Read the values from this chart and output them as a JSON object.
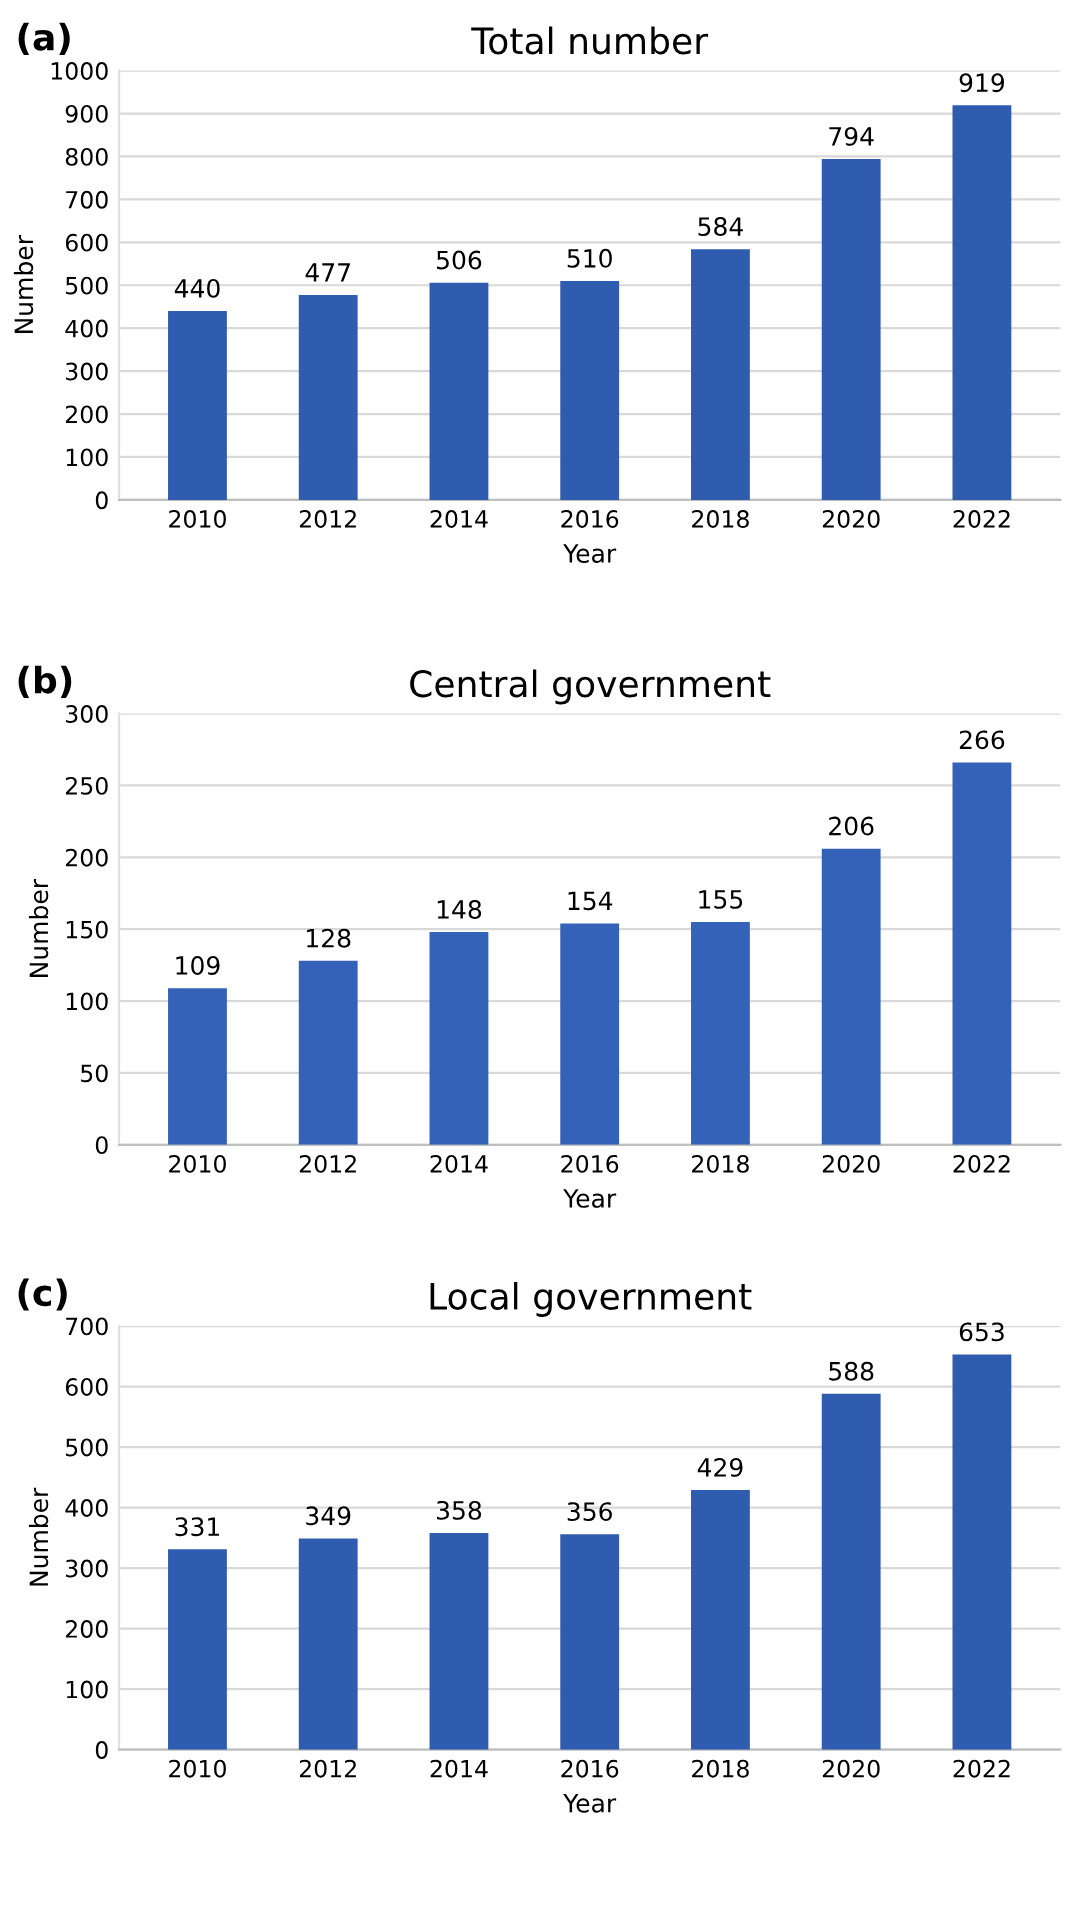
{
  "chart_data": [
    {
      "type": "bar",
      "title": "Total number",
      "xlabel": "Year",
      "ylabel": "Number",
      "annotations": [
        "(a)"
      ],
      "categories": [
        "2010",
        "2012",
        "2014",
        "2016",
        "2018",
        "2020",
        "2022"
      ],
      "values": [
        440,
        477,
        506,
        510,
        584,
        794,
        919
      ],
      "color": "#2f5cae",
      "ylim": [
        0,
        1000
      ],
      "yticks": [
        0,
        100,
        200,
        300,
        400,
        500,
        600,
        700,
        800,
        900,
        1000
      ],
      "grid": "y",
      "data_labels": true
    },
    {
      "type": "bar",
      "title": "Central government",
      "xlabel": "Year",
      "ylabel": "Number",
      "annotations": [
        "(b)"
      ],
      "categories": [
        "2010",
        "2012",
        "2014",
        "2016",
        "2018",
        "2020",
        "2022"
      ],
      "values": [
        109,
        128,
        148,
        154,
        155,
        206,
        266
      ],
      "color": "#3462b8",
      "ylim": [
        0,
        300
      ],
      "yticks": [
        0,
        50,
        100,
        150,
        200,
        250,
        300
      ],
      "grid": "y",
      "data_labels": true
    },
    {
      "type": "bar",
      "title": "Local government",
      "xlabel": "Year",
      "ylabel": "Number",
      "annotations": [
        "(c)"
      ],
      "categories": [
        "2010",
        "2012",
        "2014",
        "2016",
        "2018",
        "2020",
        "2022"
      ],
      "values": [
        331,
        349,
        358,
        356,
        429,
        588,
        653
      ],
      "color": "#2f5cae",
      "ylim": [
        0,
        700
      ],
      "yticks": [
        0,
        100,
        200,
        300,
        400,
        500,
        600,
        700
      ],
      "grid": "y",
      "data_labels": true
    }
  ]
}
